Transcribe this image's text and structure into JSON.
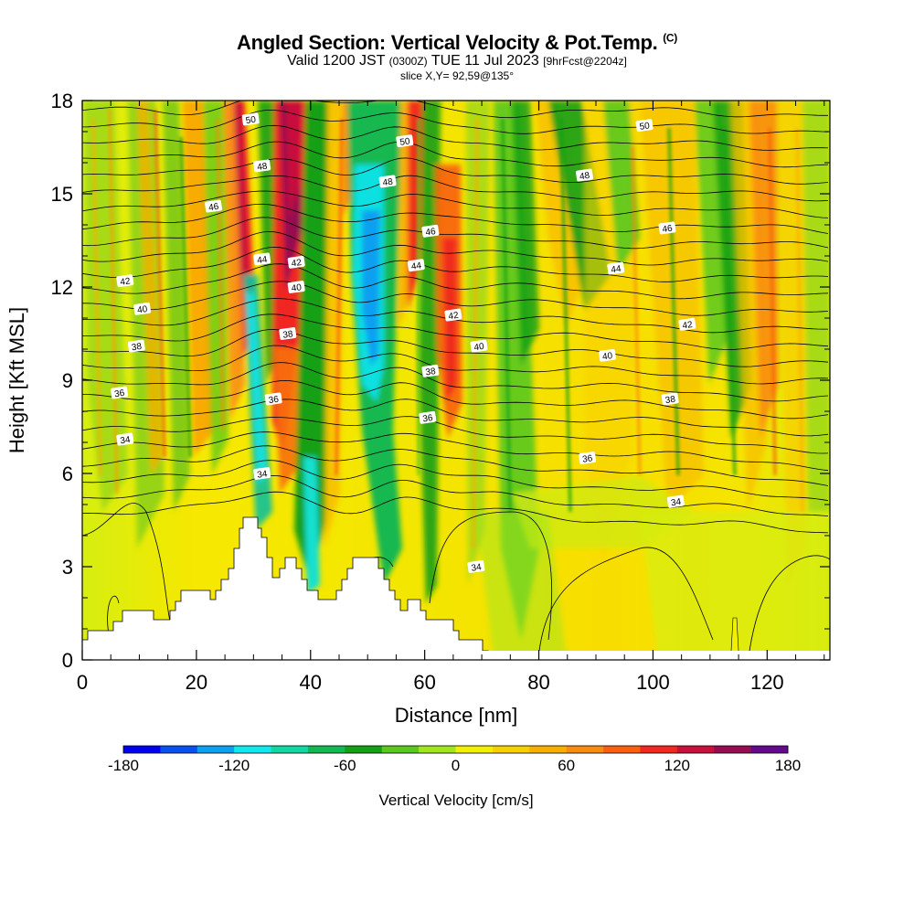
{
  "header": {
    "title_main": "Angled Section: Vertical Velocity & Pot.Temp.",
    "title_mark": "(C)",
    "valid_a": "Valid 1200 JST",
    "valid_b": "(0300Z)",
    "valid_c": "TUE 11 Jul 2023",
    "valid_d": "[9hrFcst@2204z]",
    "slice": "slice X,Y= 92,59@135°"
  },
  "chart_data": {
    "type": "heatmap",
    "xlabel": "Distance [nm]",
    "ylabel": "Height [Kft MSL]",
    "xlim": [
      0,
      131
    ],
    "ylim": [
      0,
      18
    ],
    "xticks": [
      0,
      20,
      40,
      60,
      80,
      100,
      120
    ],
    "yticks": [
      0,
      3,
      6,
      9,
      12,
      15,
      18
    ],
    "colorbar": {
      "label": "Vertical Velocity [cm/s]",
      "range": [
        -180,
        180
      ],
      "ticks": [
        -180,
        -120,
        -60,
        0,
        60,
        120,
        180
      ],
      "colors": [
        "#0000f0",
        "#0850f0",
        "#0ca0f0",
        "#10e8f0",
        "#10d8a0",
        "#14b850",
        "#14a014",
        "#5ac81e",
        "#a0e61e",
        "#f0f000",
        "#f8d000",
        "#f8b000",
        "#f88c10",
        "#f86010",
        "#f02820",
        "#c8103c",
        "#960c50",
        "#64088c"
      ]
    },
    "contour_labels": [
      {
        "x": 7.5,
        "y": 12.2,
        "text": "42"
      },
      {
        "x": 10.5,
        "y": 11.3,
        "text": "40"
      },
      {
        "x": 9.5,
        "y": 10.1,
        "text": "38"
      },
      {
        "x": 6.5,
        "y": 8.6,
        "text": "36"
      },
      {
        "x": 7.5,
        "y": 7.1,
        "text": "34"
      },
      {
        "x": 23,
        "y": 14.6,
        "text": "46"
      },
      {
        "x": 29.5,
        "y": 17.4,
        "text": "50"
      },
      {
        "x": 31.5,
        "y": 15.9,
        "text": "48"
      },
      {
        "x": 31.5,
        "y": 12.9,
        "text": "44"
      },
      {
        "x": 37.5,
        "y": 12.8,
        "text": "42"
      },
      {
        "x": 37.5,
        "y": 12.0,
        "text": "40"
      },
      {
        "x": 36,
        "y": 10.5,
        "text": "38"
      },
      {
        "x": 33.5,
        "y": 8.4,
        "text": "36"
      },
      {
        "x": 31.5,
        "y": 6.0,
        "text": "34"
      },
      {
        "x": 56.5,
        "y": 16.7,
        "text": "50"
      },
      {
        "x": 53.5,
        "y": 15.4,
        "text": "48"
      },
      {
        "x": 61,
        "y": 13.8,
        "text": "46"
      },
      {
        "x": 58.5,
        "y": 12.7,
        "text": "44"
      },
      {
        "x": 65,
        "y": 11.1,
        "text": "42"
      },
      {
        "x": 69.5,
        "y": 10.1,
        "text": "40"
      },
      {
        "x": 61,
        "y": 9.3,
        "text": "38"
      },
      {
        "x": 60.5,
        "y": 7.8,
        "text": "36"
      },
      {
        "x": 69,
        "y": 3.0,
        "text": "34"
      },
      {
        "x": 88,
        "y": 15.6,
        "text": "48"
      },
      {
        "x": 98.5,
        "y": 17.2,
        "text": "50"
      },
      {
        "x": 102.5,
        "y": 13.9,
        "text": "46"
      },
      {
        "x": 93.5,
        "y": 12.6,
        "text": "44"
      },
      {
        "x": 106,
        "y": 10.8,
        "text": "42"
      },
      {
        "x": 92,
        "y": 9.8,
        "text": "40"
      },
      {
        "x": 103,
        "y": 8.4,
        "text": "38"
      },
      {
        "x": 88.5,
        "y": 6.5,
        "text": "36"
      },
      {
        "x": 104,
        "y": 5.1,
        "text": "34"
      }
    ]
  }
}
